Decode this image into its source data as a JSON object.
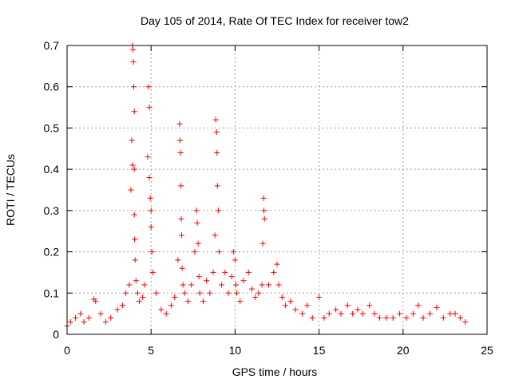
{
  "chart_data": {
    "type": "scatter",
    "title": "Day 105 of 2014, Rate Of TEC Index for receiver tow2",
    "xlabel": "GPS time / hours",
    "ylabel": "ROTI / TECUs",
    "xlim": [
      0,
      25
    ],
    "ylim": [
      0,
      0.7
    ],
    "xticks": [
      0,
      5,
      10,
      15,
      20,
      25
    ],
    "xtick_labels": [
      "0",
      "5",
      "10",
      "15",
      "20",
      "25"
    ],
    "yticks": [
      0,
      0.1,
      0.2,
      0.3,
      0.4,
      0.5,
      0.6,
      0.7
    ],
    "ytick_labels": [
      "0",
      "0.1",
      "0.2",
      "0.3",
      "0.4",
      "0.5",
      "0.6",
      "0.7"
    ],
    "grid": true,
    "marker": "+",
    "color": "#ff0000",
    "series": [
      {
        "name": "ROTI",
        "x": [
          0.0,
          0.2,
          0.5,
          0.8,
          1.0,
          1.3,
          1.6,
          1.7,
          2.0,
          2.3,
          2.6,
          3.0,
          3.3,
          3.5,
          3.7,
          3.8,
          3.85,
          3.9,
          3.9,
          3.92,
          3.95,
          3.97,
          4.0,
          4.0,
          4.0,
          4.02,
          4.05,
          4.1,
          4.2,
          4.3,
          4.5,
          4.6,
          4.8,
          4.85,
          4.9,
          4.9,
          4.95,
          5.0,
          5.0,
          5.05,
          5.1,
          5.3,
          5.6,
          5.9,
          6.2,
          6.4,
          6.6,
          6.7,
          6.72,
          6.75,
          6.78,
          6.8,
          6.82,
          6.85,
          6.9,
          7.0,
          7.2,
          7.4,
          7.6,
          7.7,
          7.75,
          7.8,
          7.85,
          7.9,
          8.1,
          8.3,
          8.5,
          8.7,
          8.8,
          8.85,
          8.9,
          8.92,
          8.95,
          9.0,
          9.05,
          9.2,
          9.4,
          9.6,
          9.8,
          9.9,
          10.0,
          10.05,
          10.1,
          10.3,
          10.5,
          10.8,
          11.0,
          11.2,
          11.4,
          11.6,
          11.65,
          11.7,
          11.72,
          11.75,
          12.0,
          12.3,
          12.5,
          12.6,
          12.8,
          13.0,
          13.3,
          13.6,
          14.0,
          14.3,
          14.6,
          15.0,
          15.3,
          15.6,
          16.0,
          16.3,
          16.7,
          17.0,
          17.3,
          17.6,
          18.0,
          18.3,
          18.6,
          19.0,
          19.4,
          19.8,
          20.2,
          20.6,
          20.9,
          21.2,
          21.6,
          22.0,
          22.4,
          22.8,
          23.1,
          23.4,
          23.7
        ],
        "y": [
          0.02,
          0.03,
          0.04,
          0.05,
          0.03,
          0.04,
          0.085,
          0.08,
          0.05,
          0.03,
          0.04,
          0.06,
          0.07,
          0.1,
          0.12,
          0.35,
          0.47,
          0.41,
          0.7,
          0.69,
          0.66,
          0.6,
          0.54,
          0.4,
          0.29,
          0.23,
          0.18,
          0.13,
          0.1,
          0.08,
          0.09,
          0.12,
          0.43,
          0.6,
          0.55,
          0.38,
          0.33,
          0.3,
          0.26,
          0.2,
          0.15,
          0.1,
          0.06,
          0.05,
          0.07,
          0.09,
          0.18,
          0.51,
          0.47,
          0.44,
          0.36,
          0.28,
          0.24,
          0.16,
          0.12,
          0.1,
          0.08,
          0.12,
          0.2,
          0.3,
          0.27,
          0.22,
          0.14,
          0.1,
          0.08,
          0.13,
          0.1,
          0.15,
          0.24,
          0.52,
          0.49,
          0.44,
          0.36,
          0.3,
          0.2,
          0.12,
          0.15,
          0.1,
          0.14,
          0.2,
          0.18,
          0.12,
          0.1,
          0.08,
          0.13,
          0.15,
          0.11,
          0.09,
          0.1,
          0.12,
          0.22,
          0.33,
          0.3,
          0.28,
          0.12,
          0.15,
          0.17,
          0.12,
          0.09,
          0.07,
          0.08,
          0.06,
          0.05,
          0.07,
          0.04,
          0.09,
          0.04,
          0.05,
          0.06,
          0.05,
          0.07,
          0.05,
          0.06,
          0.05,
          0.07,
          0.05,
          0.04,
          0.04,
          0.04,
          0.05,
          0.04,
          0.05,
          0.07,
          0.04,
          0.05,
          0.065,
          0.04,
          0.05,
          0.05,
          0.04,
          0.03
        ]
      }
    ]
  }
}
